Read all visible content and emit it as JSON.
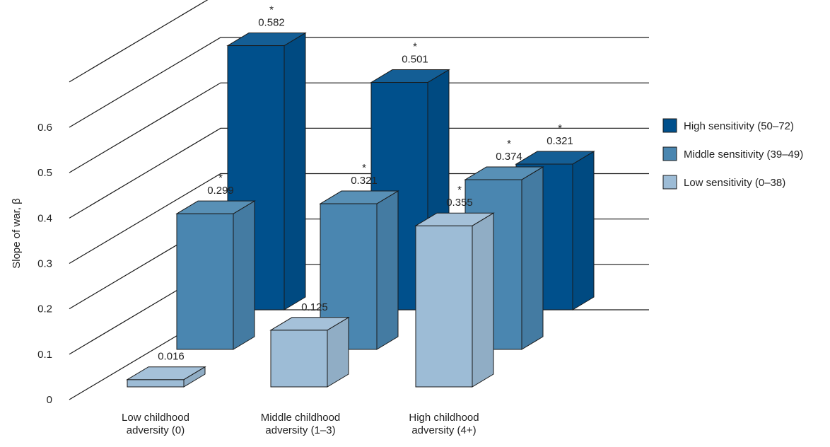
{
  "chart_data": {
    "type": "bar",
    "style": "3d-grouped",
    "title": "",
    "ylabel": "Slope of war, β",
    "xlabel": "",
    "ylim": [
      0,
      0.6
    ],
    "yticks": [
      "0",
      "0.1",
      "0.2",
      "0.3",
      "0.4",
      "0.5",
      "0.6"
    ],
    "grid": true,
    "legend_position": "right",
    "categories": [
      [
        "Low childhood",
        "adversity (0)"
      ],
      [
        "Middle childhood",
        "adversity (1–3)"
      ],
      [
        "High childhood",
        "adversity (4+)"
      ]
    ],
    "series": [
      {
        "name": "High sensitivity (50–72)",
        "color": "#00508c",
        "values": [
          0.582,
          0.501,
          0.321
        ],
        "labels": [
          "0.582",
          "0.501",
          "0.321"
        ],
        "significant": [
          true,
          true,
          true
        ]
      },
      {
        "name": "Middle sensitivity (39–49)",
        "color": "#4a86b0",
        "values": [
          0.299,
          0.321,
          0.374
        ],
        "labels": [
          "0.299",
          "0.321",
          "0.374"
        ],
        "significant": [
          true,
          true,
          true
        ]
      },
      {
        "name": "Low sensitivity (0–38)",
        "color": "#9dbcd6",
        "values": [
          0.016,
          0.125,
          0.355
        ],
        "labels": [
          "0.016",
          "0.125",
          "0.355"
        ],
        "significant": [
          false,
          false,
          true
        ]
      }
    ],
    "significance_marker": "*"
  }
}
